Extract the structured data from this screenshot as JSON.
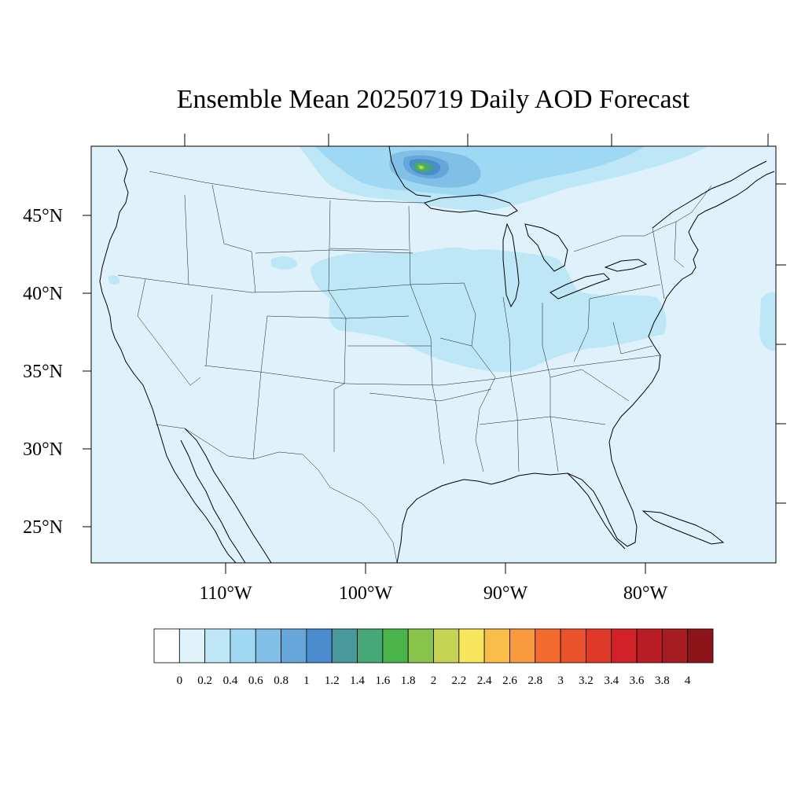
{
  "map": {
    "title": "Ensemble Mean 20250719 Daily AOD Forecast",
    "lat_labels": [
      "45°N",
      "40°N",
      "35°N",
      "30°N",
      "25°N"
    ],
    "lon_labels": [
      "110°W",
      "100°W",
      "90°W",
      "80°W"
    ],
    "background_color": "#dff2fb",
    "border_color": "#000000"
  },
  "colorbar": {
    "levels": [
      "0",
      "0.2",
      "0.4",
      "0.6",
      "0.8",
      "1",
      "1.2",
      "1.4",
      "1.6",
      "1.8",
      "2",
      "2.2",
      "2.4",
      "2.6",
      "2.8",
      "3",
      "3.2",
      "3.4",
      "3.6",
      "3.8",
      "4"
    ],
    "colors": [
      "#ffffff",
      "#e0f3fb",
      "#bde6f7",
      "#9fd8f3",
      "#82bfe6",
      "#66a6da",
      "#4a8ccd",
      "#49999c",
      "#47a877",
      "#4ab34a",
      "#88c34b",
      "#c6d355",
      "#f7e55b",
      "#f9bd49",
      "#f89a3d",
      "#f46a2f",
      "#ea522c",
      "#df3a29",
      "#d22128",
      "#b91d24",
      "#a61c21",
      "#8d1519"
    ]
  }
}
